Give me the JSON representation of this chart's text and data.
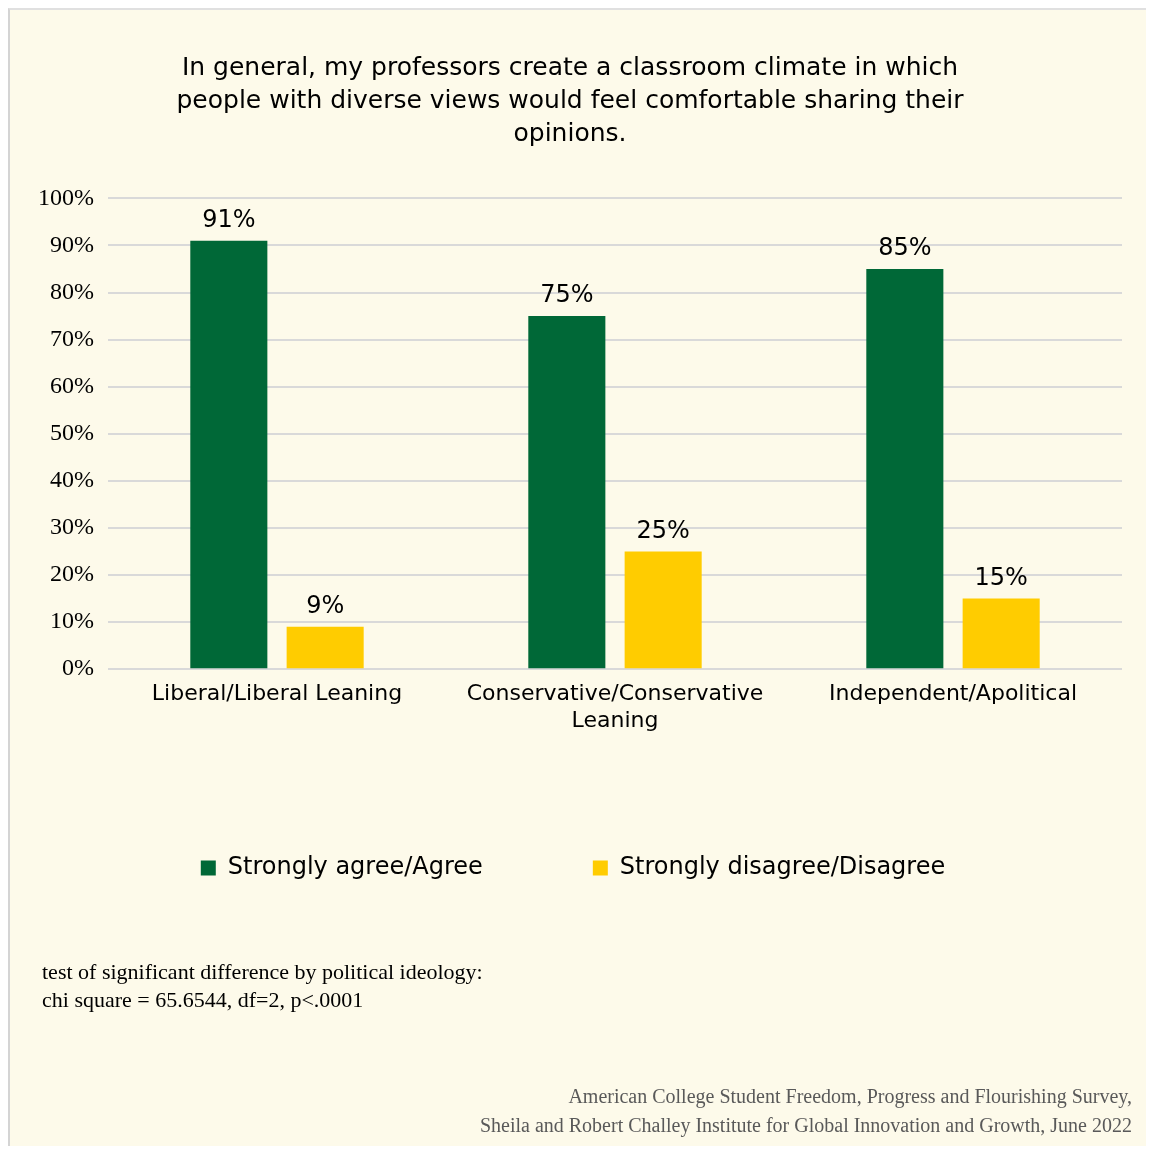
{
  "chart_data": {
    "type": "bar",
    "title": "In general, my professors create a classroom climate in which people with diverse views would feel comfortable sharing their opinions.",
    "categories": [
      "Liberal/Liberal Leaning",
      "Conservative/Conservative Leaning",
      "Independent/Apolitical"
    ],
    "series": [
      {
        "name": "Strongly agree/Agree",
        "color": "#006837",
        "values": [
          91,
          75,
          85
        ],
        "value_labels": [
          "91%",
          "75%",
          "85%"
        ]
      },
      {
        "name": "Strongly disagree/Disagree",
        "color": "#ffcc00",
        "values": [
          9,
          25,
          15
        ],
        "value_labels": [
          "9%",
          "25%",
          "15%"
        ]
      }
    ],
    "ylim": [
      0,
      100
    ],
    "yticks": [
      {
        "value": 0,
        "label": "0%"
      },
      {
        "value": 10,
        "label": "10%"
      },
      {
        "value": 20,
        "label": "20%"
      },
      {
        "value": 30,
        "label": "30%"
      },
      {
        "value": 40,
        "label": "40%"
      },
      {
        "value": 50,
        "label": "50%"
      },
      {
        "value": 60,
        "label": "60%"
      },
      {
        "value": 70,
        "label": "70%"
      },
      {
        "value": 80,
        "label": "80%"
      },
      {
        "value": 90,
        "label": "90%"
      },
      {
        "value": 100,
        "label": "100%"
      }
    ],
    "grid": "y",
    "legend": "bottom",
    "annotations": [
      "test of significant difference by political ideology:\nchi square = 65.6544, df=2, p<.0001",
      "American College Student Freedom, Progress and Flourishing Survey,\nSheila and Robert Challey Institute for Global Innovation and Growth, June 2022"
    ]
  }
}
